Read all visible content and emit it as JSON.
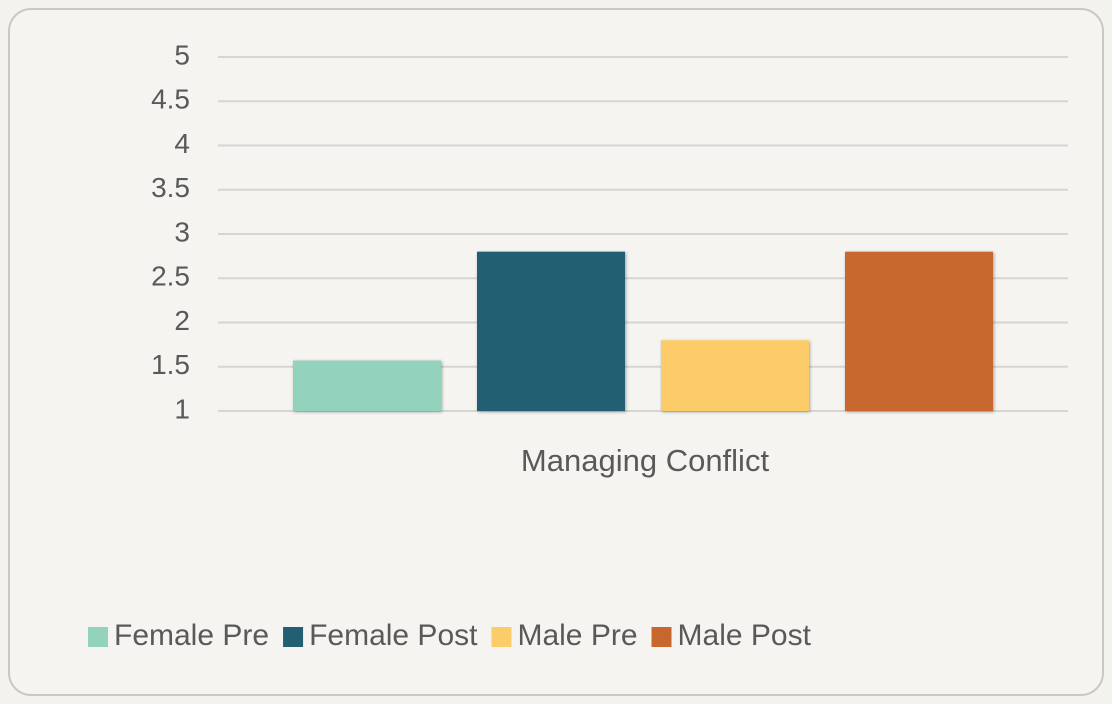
{
  "chart_data": {
    "type": "bar",
    "categories": [
      "Managing Conflict"
    ],
    "series": [
      {
        "name": "Female Pre",
        "color": "#93d2bd",
        "values": [
          1.57
        ]
      },
      {
        "name": "Female Post",
        "color": "#235f72",
        "values": [
          2.8
        ]
      },
      {
        "name": "Male Pre",
        "color": "#fdcc6a",
        "values": [
          1.8
        ]
      },
      {
        "name": "Male Post",
        "color": "#c8672d",
        "values": [
          2.8
        ]
      }
    ],
    "ylim": [
      1,
      5
    ],
    "yticks": [
      1,
      1.5,
      2,
      2.5,
      3,
      3.5,
      4,
      4.5,
      5
    ],
    "grid": true,
    "legend": "bottom"
  }
}
